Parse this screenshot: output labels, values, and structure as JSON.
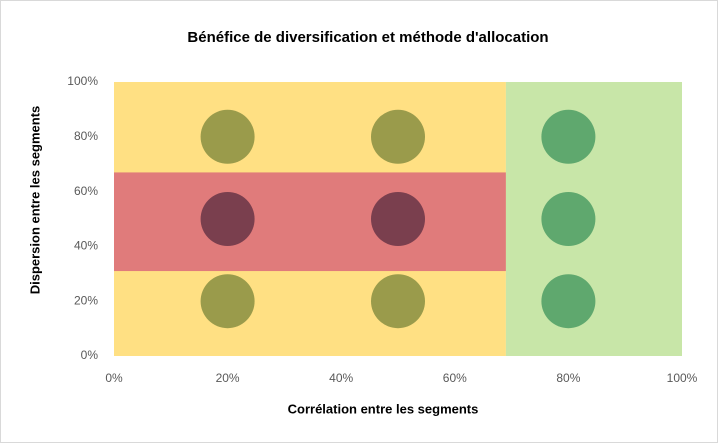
{
  "chart_data": {
    "type": "scatter",
    "title": "Bénéfice de diversification et méthode d'allocation",
    "x_label": "Corrélation entre les segments",
    "y_label": "Dispersion entre les segments",
    "x": [
      20,
      50,
      80,
      20,
      50,
      80,
      20,
      50,
      80
    ],
    "y": [
      80,
      80,
      80,
      50,
      50,
      50,
      20,
      20,
      20
    ],
    "colors": [
      "#9a9b4b",
      "#9a9b4b",
      "#5fa86e",
      "#7a3f4e",
      "#7a3f4e",
      "#5fa86e",
      "#9a9b4b",
      "#9a9b4b",
      "#5fa86e"
    ],
    "regions": [
      {
        "x": [
          0,
          69
        ],
        "y": [
          0,
          100
        ],
        "color": "#ffe083"
      },
      {
        "x": [
          0,
          69
        ],
        "y": [
          31,
          67
        ],
        "color": "#e07b7b"
      },
      {
        "x": [
          69,
          100
        ],
        "y": [
          0,
          100
        ],
        "color": "#c8e6a8"
      }
    ],
    "xlim": [
      0,
      100
    ],
    "ylim": [
      0,
      100
    ],
    "xticks": [
      {
        "value": 0,
        "label": "0%"
      },
      {
        "value": 20,
        "label": "20%"
      },
      {
        "value": 40,
        "label": "40%"
      },
      {
        "value": 60,
        "label": "60%"
      },
      {
        "value": 80,
        "label": "80%"
      },
      {
        "value": 100,
        "label": "100%"
      }
    ],
    "yticks": [
      {
        "value": 0,
        "label": "0%"
      },
      {
        "value": 20,
        "label": "20%"
      },
      {
        "value": 40,
        "label": "40%"
      },
      {
        "value": 60,
        "label": "60%"
      },
      {
        "value": 80,
        "label": "80%"
      },
      {
        "value": 100,
        "label": "100%"
      }
    ]
  }
}
